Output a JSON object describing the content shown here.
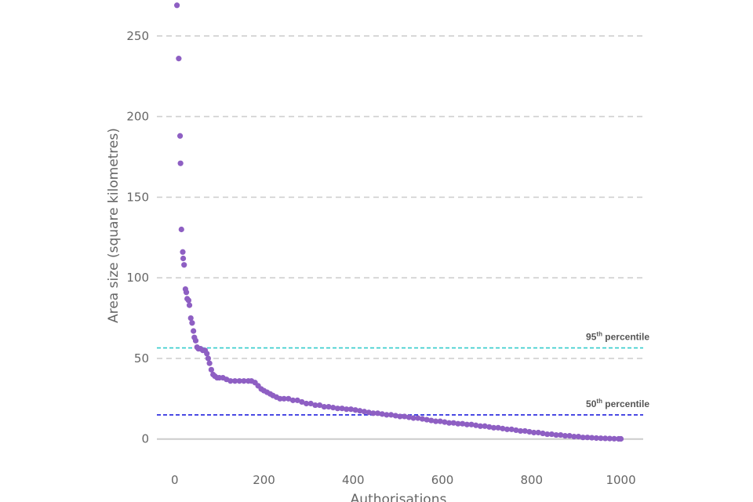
{
  "chart_data": {
    "type": "scatter",
    "xlabel": "Authorisations",
    "ylabel": "Area size (square kilometres)",
    "xlim": [
      -40,
      1050
    ],
    "ylim": [
      -5,
      265
    ],
    "x_ticks": [
      0,
      200,
      400,
      600,
      800,
      1000
    ],
    "y_ticks": [
      0,
      50,
      100,
      150,
      200,
      250
    ],
    "grid": "horizontal-dashed",
    "marker_color": "#8e5fc3",
    "reference_lines": [
      {
        "value": 56.5,
        "label_main": "95",
        "label_sup": "th",
        "label_rest": " percentile",
        "color": "#33cccc"
      },
      {
        "value": 15,
        "label_main": "50",
        "label_sup": "th",
        "label_rest": " percentile",
        "color": "#2222dd"
      }
    ],
    "series": [
      {
        "points": [
          [
            5,
            269
          ],
          [
            9,
            236
          ],
          [
            12,
            188
          ],
          [
            13,
            171
          ],
          [
            15,
            130
          ],
          [
            18,
            116
          ],
          [
            19,
            112
          ],
          [
            21,
            108
          ],
          [
            24,
            93
          ],
          [
            26,
            91
          ],
          [
            28,
            87
          ],
          [
            31,
            86
          ],
          [
            33,
            83
          ],
          [
            36,
            75
          ],
          [
            39,
            72
          ],
          [
            42,
            67
          ],
          [
            44,
            63
          ],
          [
            47,
            61
          ],
          [
            50,
            57
          ],
          [
            53,
            56
          ],
          [
            58,
            56
          ],
          [
            63,
            55
          ],
          [
            68,
            55
          ],
          [
            72,
            53
          ],
          [
            75,
            50
          ],
          [
            78,
            47
          ],
          [
            82,
            43
          ],
          [
            86,
            40
          ],
          [
            90,
            39
          ],
          [
            95,
            38
          ],
          [
            100,
            38
          ],
          [
            108,
            38
          ],
          [
            116,
            37
          ],
          [
            125,
            36
          ],
          [
            135,
            36
          ],
          [
            145,
            36
          ],
          [
            155,
            36
          ],
          [
            165,
            36
          ],
          [
            172,
            36
          ],
          [
            180,
            35
          ],
          [
            187,
            33
          ],
          [
            194,
            31
          ],
          [
            200,
            30
          ],
          [
            207,
            29
          ],
          [
            214,
            28
          ],
          [
            220,
            27
          ],
          [
            228,
            26
          ],
          [
            236,
            25
          ],
          [
            245,
            25
          ],
          [
            255,
            25
          ],
          [
            265,
            24
          ],
          [
            275,
            24
          ],
          [
            285,
            23
          ],
          [
            295,
            22
          ],
          [
            305,
            22
          ],
          [
            315,
            21
          ],
          [
            325,
            21
          ],
          [
            335,
            20
          ],
          [
            345,
            20
          ],
          [
            355,
            19.5
          ],
          [
            365,
            19
          ],
          [
            375,
            19
          ],
          [
            385,
            18.5
          ],
          [
            395,
            18.5
          ],
          [
            405,
            18
          ],
          [
            415,
            17.5
          ],
          [
            425,
            17
          ],
          [
            435,
            16.5
          ],
          [
            445,
            16
          ],
          [
            455,
            16
          ],
          [
            465,
            15.5
          ],
          [
            475,
            15
          ],
          [
            485,
            15
          ],
          [
            495,
            14.5
          ],
          [
            505,
            14
          ],
          [
            515,
            14
          ],
          [
            525,
            13.5
          ],
          [
            535,
            13
          ],
          [
            545,
            13
          ],
          [
            555,
            12.5
          ],
          [
            565,
            12
          ],
          [
            575,
            11.5
          ],
          [
            585,
            11
          ],
          [
            595,
            11
          ],
          [
            605,
            10.5
          ],
          [
            615,
            10
          ],
          [
            625,
            10
          ],
          [
            635,
            9.5
          ],
          [
            645,
            9.5
          ],
          [
            655,
            9
          ],
          [
            665,
            9
          ],
          [
            675,
            8.5
          ],
          [
            685,
            8
          ],
          [
            695,
            8
          ],
          [
            705,
            7.5
          ],
          [
            715,
            7
          ],
          [
            725,
            7
          ],
          [
            735,
            6.5
          ],
          [
            745,
            6
          ],
          [
            755,
            6
          ],
          [
            765,
            5.5
          ],
          [
            775,
            5
          ],
          [
            785,
            5
          ],
          [
            795,
            4.5
          ],
          [
            805,
            4
          ],
          [
            815,
            4
          ],
          [
            825,
            3.5
          ],
          [
            835,
            3
          ],
          [
            845,
            3
          ],
          [
            855,
            2.5
          ],
          [
            865,
            2.5
          ],
          [
            875,
            2
          ],
          [
            885,
            2
          ],
          [
            895,
            1.5
          ],
          [
            905,
            1.5
          ],
          [
            915,
            1
          ],
          [
            925,
            1
          ],
          [
            935,
            0.8
          ],
          [
            945,
            0.6
          ],
          [
            955,
            0.5
          ],
          [
            965,
            0.4
          ],
          [
            975,
            0.3
          ],
          [
            985,
            0.2
          ],
          [
            995,
            0.1
          ],
          [
            1000,
            0.1
          ]
        ]
      }
    ]
  }
}
